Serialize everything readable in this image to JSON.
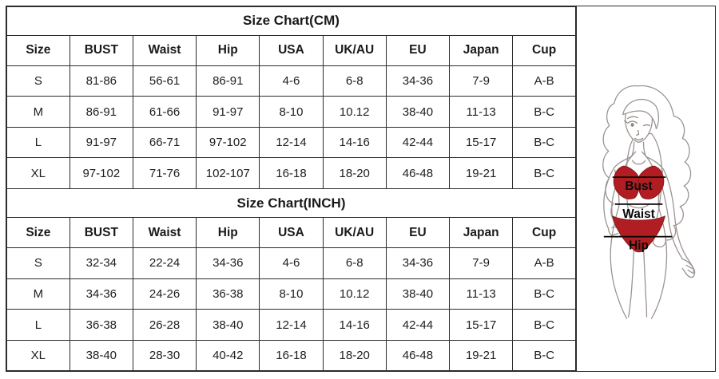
{
  "page": {
    "background": "#ffffff",
    "border_color": "#2b2b2b",
    "text_color": "#1a1a1a"
  },
  "size_chart": {
    "tables": [
      {
        "title": "Size Chart(CM)",
        "headers": [
          "Size",
          "BUST",
          "Waist",
          "Hip",
          "USA",
          "UK/AU",
          "EU",
          "Japan",
          "Cup"
        ],
        "rows": [
          [
            "S",
            "81-86",
            "56-61",
            "86-91",
            "4-6",
            "6-8",
            "34-36",
            "7-9",
            "A-B"
          ],
          [
            "M",
            "86-91",
            "61-66",
            "91-97",
            "8-10",
            "10.12",
            "38-40",
            "11-13",
            "B-C"
          ],
          [
            "L",
            "91-97",
            "66-71",
            "97-102",
            "12-14",
            "14-16",
            "42-44",
            "15-17",
            "B-C"
          ],
          [
            "XL",
            "97-102",
            "71-76",
            "102-107",
            "16-18",
            "18-20",
            "46-48",
            "19-21",
            "B-C"
          ]
        ]
      },
      {
        "title": "Size Chart(INCH)",
        "headers": [
          "Size",
          "BUST",
          "Waist",
          "Hip",
          "USA",
          "UK/AU",
          "EU",
          "Japan",
          "Cup"
        ],
        "rows": [
          [
            "S",
            "32-34",
            "22-24",
            "34-36",
            "4-6",
            "6-8",
            "34-36",
            "7-9",
            "A-B"
          ],
          [
            "M",
            "34-36",
            "24-26",
            "36-38",
            "8-10",
            "10.12",
            "38-40",
            "11-13",
            "B-C"
          ],
          [
            "L",
            "36-38",
            "26-28",
            "38-40",
            "12-14",
            "14-16",
            "42-44",
            "15-17",
            "B-C"
          ],
          [
            "XL",
            "38-40",
            "28-30",
            "40-42",
            "16-18",
            "18-20",
            "46-48",
            "19-21",
            "B-C"
          ]
        ]
      }
    ]
  },
  "figure": {
    "labels": {
      "bust": "Bust",
      "waist": "Waist",
      "hip": "Hip"
    },
    "colors": {
      "bikini_red": "#b01e23",
      "bikini_dark": "#8d161b",
      "line_art": "#9b9491",
      "measurement_line": "#000000"
    }
  }
}
